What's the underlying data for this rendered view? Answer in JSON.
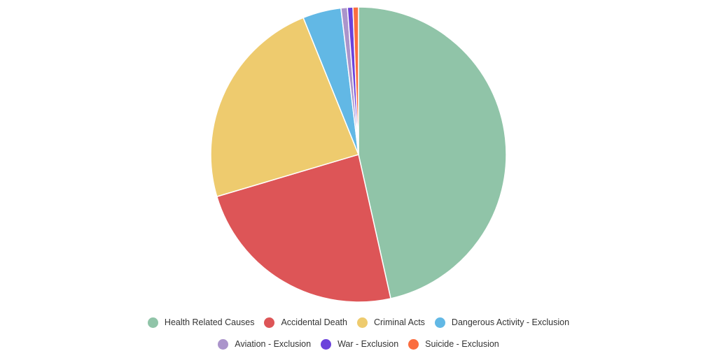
{
  "chart_data": {
    "type": "pie",
    "title": "",
    "categories": [
      "Health Related Causes",
      "Accidental Death",
      "Criminal Acts",
      "Dangerous Activity - Exclusion",
      "Aviation - Exclusion",
      "War - Exclusion",
      "Suicide - Exclusion"
    ],
    "values": [
      46.5,
      23.9,
      23.5,
      4.2,
      0.7,
      0.6,
      0.6
    ],
    "colors": [
      "#90c4a8",
      "#dd5557",
      "#eecb6e",
      "#62b8e5",
      "#ab94cb",
      "#6b42db",
      "#fb6d3f"
    ],
    "start_angle_deg": 0,
    "direction": "clockwise",
    "legend_position": "bottom"
  }
}
